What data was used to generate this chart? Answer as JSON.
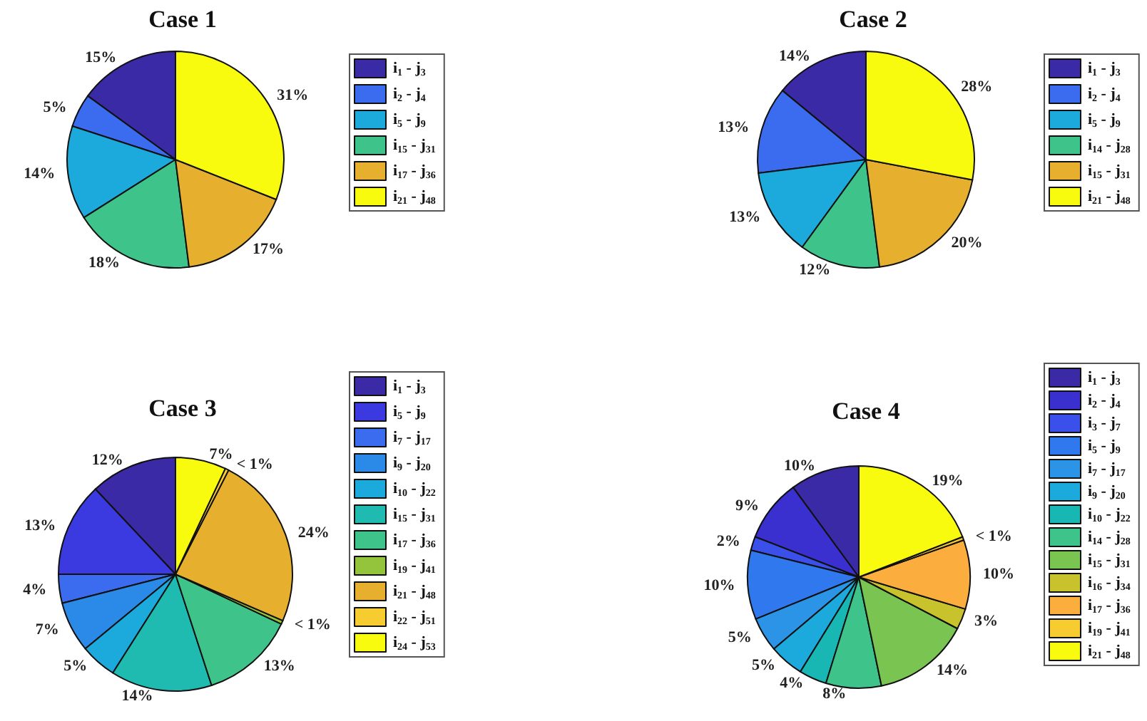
{
  "chart_data": [
    {
      "type": "pie",
      "title": "Case 1",
      "legend": "right",
      "categories": [
        "i$_{1}$ - j$_{3}$",
        "i$_{2}$ - j$_{4}$",
        "i$_{5}$ - j$_{9}$",
        "i$_{15}$ - j$_{31}$",
        "i$_{17}$ - j$_{36}$",
        "i$_{21}$ - j$_{48}$"
      ],
      "values": [
        15,
        5,
        14,
        18,
        17,
        31
      ],
      "value_labels": [
        "15%",
        "5%",
        "14%",
        "18%",
        "17%",
        "31%"
      ],
      "colors": [
        "#3a2aa6",
        "#3b6cf0",
        "#1ca9dc",
        "#3ec38a",
        "#e6b02e",
        "#f9fb0e"
      ]
    },
    {
      "type": "pie",
      "title": "Case 2",
      "legend": "right",
      "categories": [
        "i$_{1}$ - j$_{3}$",
        "i$_{2}$ - j$_{4}$",
        "i$_{5}$ - j$_{9}$",
        "i$_{14}$ - j$_{28}$",
        "i$_{15}$ - j$_{31}$",
        "i$_{21}$ - j$_{48}$"
      ],
      "values": [
        14,
        13,
        13,
        12,
        20,
        28
      ],
      "value_labels": [
        "14%",
        "13%",
        "13%",
        "12%",
        "20%",
        "28%"
      ],
      "colors": [
        "#3a2aa6",
        "#3b6cf0",
        "#1ca9dc",
        "#3ec38a",
        "#e6b02e",
        "#f9fb0e"
      ]
    },
    {
      "type": "pie",
      "title": "Case 3",
      "legend": "right",
      "categories": [
        "i$_{1}$ - j$_{3}$",
        "i$_{5}$ - j$_{9}$",
        "i$_{7}$ - j$_{17}$",
        "i$_{9}$ - j$_{20}$",
        "i$_{10}$ - j$_{22}$",
        "i$_{15}$ - j$_{31}$",
        "i$_{17}$ - j$_{36}$",
        "i$_{19}$ - j$_{41}$",
        "i$_{21}$ - j$_{48}$",
        "i$_{22}$ - j$_{51}$",
        "i$_{24}$ - j$_{53}$"
      ],
      "values": [
        12,
        13,
        4,
        7,
        5,
        14,
        13,
        0.5,
        24,
        0.5,
        7
      ],
      "value_labels": [
        "12%",
        "13%",
        "4%",
        "7%",
        "5%",
        "14%",
        "13%",
        "< 1%",
        "24%",
        "< 1%",
        "7%"
      ],
      "colors": [
        "#3a2aa6",
        "#3a3ae0",
        "#3b6cf0",
        "#2b8ae8",
        "#1ca9dc",
        "#1fbab0",
        "#3ec38a",
        "#94c43c",
        "#e6b02e",
        "#f6cc30",
        "#f9fb0e"
      ]
    },
    {
      "type": "pie",
      "title": "Case 4",
      "legend": "right",
      "categories": [
        "i$_{1}$ - j$_{3}$",
        "i$_{2}$ - j$_{4}$",
        "i$_{3}$ - j$_{7}$",
        "i$_{5}$ - j$_{9}$",
        "i$_{7}$ - j$_{17}$",
        "i$_{9}$ - j$_{20}$",
        "i$_{10}$ - j$_{22}$",
        "i$_{14}$ - j$_{28}$",
        "i$_{15}$ - j$_{31}$",
        "i$_{16}$ - j$_{34}$",
        "i$_{17}$ - j$_{36}$",
        "i$_{19}$ - j$_{41}$",
        "i$_{21}$ - j$_{48}$"
      ],
      "values": [
        10,
        9,
        2,
        10,
        5,
        5,
        4,
        8,
        14,
        3,
        10,
        0.5,
        19
      ],
      "value_labels": [
        "10%",
        "9%",
        "2%",
        "10%",
        "5%",
        "5%",
        "4%",
        "8%",
        "14%",
        "3%",
        "10%",
        "< 1%",
        "19%"
      ],
      "colors": [
        "#3a2aa6",
        "#3a30d0",
        "#3b50ea",
        "#3078ee",
        "#2b94e6",
        "#1ca9dc",
        "#19b7b4",
        "#3ec38a",
        "#7ac452",
        "#c8c22c",
        "#fbae3e",
        "#f6cc30",
        "#f9fb0e"
      ]
    }
  ]
}
